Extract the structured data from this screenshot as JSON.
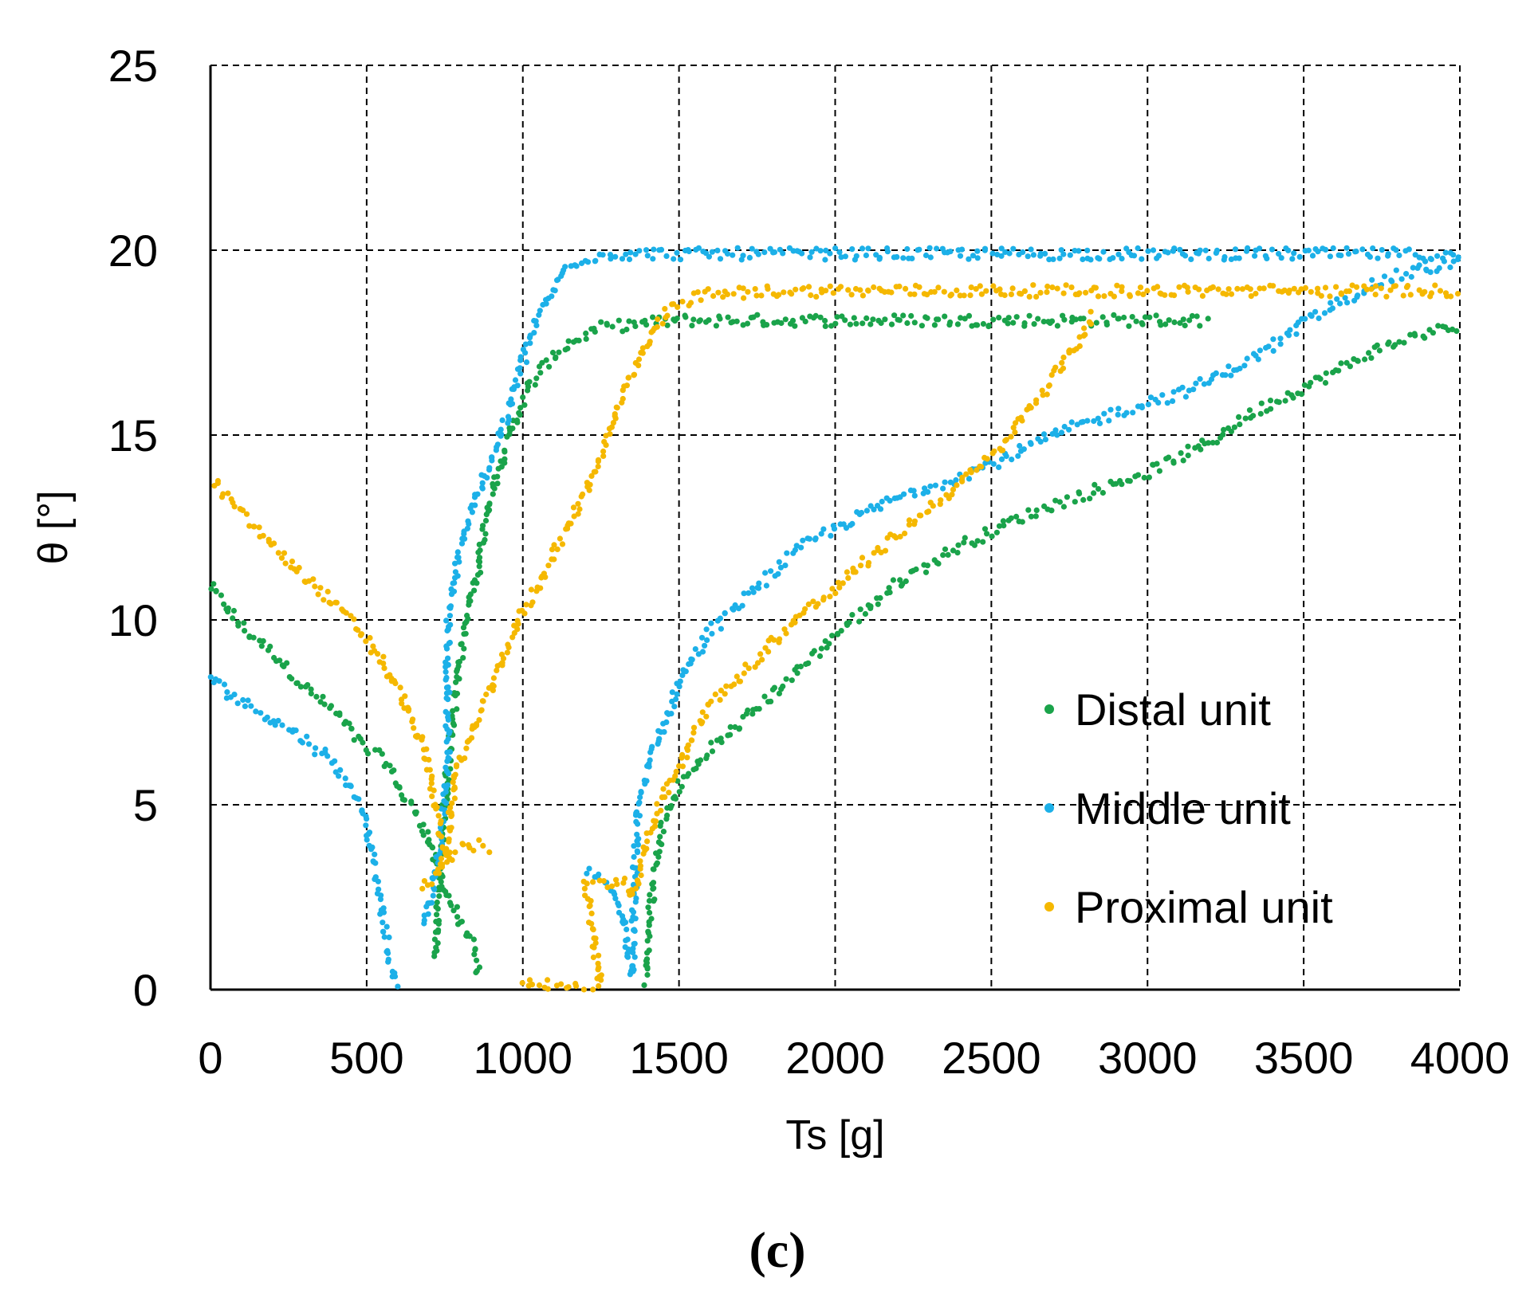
{
  "caption": "(c)",
  "chart_data": {
    "type": "scatter",
    "title": "",
    "xlabel": "Ts [g]",
    "ylabel": "θ [°]",
    "xlim": [
      0,
      4000
    ],
    "ylim": [
      0,
      25
    ],
    "x_ticks": [
      "0",
      "500",
      "1000",
      "1500",
      "2000",
      "2500",
      "3000",
      "3500",
      "4000"
    ],
    "y_ticks": [
      "0",
      "5",
      "10",
      "15",
      "20",
      "25"
    ],
    "grid": true,
    "legend_position": "lower-right",
    "colors": {
      "distal": "#1aa34a",
      "middle": "#1cb0e8",
      "proximal": "#f5b800"
    },
    "series": [
      {
        "name": "Distal unit",
        "key": "distal",
        "segments": [
          [
            [
              0,
              10.9
            ],
            [
              100,
              9.8
            ],
            [
              200,
              9.1
            ],
            [
              300,
              8.2
            ],
            [
              400,
              7.5
            ],
            [
              500,
              6.5
            ],
            [
              560,
              6.2
            ],
            [
              620,
              5.2
            ],
            [
              680,
              4.5
            ],
            [
              720,
              3.5
            ],
            [
              760,
              2.5
            ],
            [
              800,
              1.8
            ],
            [
              840,
              1.2
            ],
            [
              860,
              0.3
            ]
          ],
          [
            [
              720,
              0.8
            ],
            [
              740,
              4.0
            ],
            [
              760,
              6.0
            ],
            [
              780,
              7.5
            ],
            [
              800,
              9.0
            ],
            [
              830,
              10.5
            ],
            [
              860,
              11.5
            ],
            [
              880,
              12.8
            ],
            [
              900,
              13.5
            ],
            [
              940,
              14.5
            ],
            [
              980,
              15.5
            ],
            [
              1020,
              16.3
            ],
            [
              1080,
              17.0
            ],
            [
              1150,
              17.5
            ],
            [
              1250,
              17.9
            ],
            [
              1350,
              18.0
            ],
            [
              1500,
              18.1
            ],
            [
              1700,
              18.1
            ],
            [
              2000,
              18.1
            ],
            [
              2300,
              18.1
            ],
            [
              2600,
              18.1
            ],
            [
              2900,
              18.1
            ],
            [
              3200,
              18.1
            ]
          ],
          [
            [
              1390,
              0.2
            ],
            [
              1400,
              1.5
            ],
            [
              1420,
              3.0
            ],
            [
              1450,
              4.5
            ],
            [
              1500,
              5.5
            ],
            [
              1550,
              6.0
            ],
            [
              1600,
              6.5
            ],
            [
              1700,
              7.2
            ],
            [
              1800,
              8.0
            ],
            [
              1900,
              8.8
            ],
            [
              2000,
              9.6
            ],
            [
              2100,
              10.3
            ],
            [
              2200,
              11.0
            ],
            [
              2300,
              11.5
            ],
            [
              2400,
              12.0
            ],
            [
              2500,
              12.4
            ],
            [
              2600,
              12.8
            ],
            [
              2700,
              13.1
            ],
            [
              2800,
              13.4
            ],
            [
              2900,
              13.7
            ],
            [
              3000,
              14.0
            ],
            [
              3100,
              14.4
            ],
            [
              3200,
              14.8
            ],
            [
              3300,
              15.4
            ],
            [
              3400,
              15.9
            ],
            [
              3500,
              16.3
            ],
            [
              3600,
              16.7
            ],
            [
              3700,
              17.2
            ],
            [
              3800,
              17.5
            ],
            [
              3900,
              17.8
            ],
            [
              4000,
              17.9
            ]
          ]
        ]
      },
      {
        "name": "Middle unit",
        "key": "middle",
        "segments": [
          [
            [
              0,
              8.4
            ],
            [
              100,
              7.8
            ],
            [
              200,
              7.3
            ],
            [
              300,
              6.8
            ],
            [
              400,
              6.1
            ],
            [
              470,
              5.2
            ],
            [
              500,
              4.5
            ],
            [
              520,
              3.5
            ],
            [
              540,
              2.5
            ],
            [
              560,
              1.5
            ],
            [
              580,
              0.5
            ],
            [
              600,
              0.1
            ]
          ],
          [
            [
              680,
              1.8
            ],
            [
              700,
              2.2
            ],
            [
              720,
              3.0
            ],
            [
              740,
              4.5
            ],
            [
              760,
              6.0
            ],
            [
              760,
              10.0
            ],
            [
              780,
              11.0
            ],
            [
              800,
              12.0
            ],
            [
              840,
              13.0
            ],
            [
              880,
              13.9
            ],
            [
              920,
              14.8
            ],
            [
              960,
              15.8
            ],
            [
              1000,
              17.0
            ],
            [
              1050,
              18.2
            ],
            [
              1100,
              19.0
            ],
            [
              1150,
              19.6
            ],
            [
              1200,
              19.8
            ],
            [
              1300,
              19.9
            ],
            [
              1500,
              19.9
            ],
            [
              1800,
              19.9
            ],
            [
              2100,
              19.9
            ],
            [
              2400,
              19.9
            ],
            [
              2700,
              19.9
            ],
            [
              3000,
              19.9
            ],
            [
              3300,
              19.9
            ],
            [
              3600,
              19.9
            ],
            [
              3800,
              19.9
            ],
            [
              4000,
              19.8
            ]
          ],
          [
            [
              1200,
              3.2
            ],
            [
              1250,
              3.0
            ],
            [
              1300,
              2.5
            ],
            [
              1330,
              1.5
            ],
            [
              1350,
              0.3
            ],
            [
              1360,
              3.5
            ],
            [
              1370,
              5.0
            ],
            [
              1400,
              6.0
            ],
            [
              1450,
              7.2
            ],
            [
              1500,
              8.3
            ],
            [
              1550,
              9.0
            ],
            [
              1600,
              9.7
            ],
            [
              1700,
              10.5
            ],
            [
              1800,
              11.3
            ],
            [
              1900,
              12.0
            ],
            [
              2000,
              12.5
            ],
            [
              2100,
              12.9
            ],
            [
              2200,
              13.3
            ],
            [
              2300,
              13.6
            ],
            [
              2400,
              13.9
            ],
            [
              2500,
              14.2
            ],
            [
              2600,
              14.6
            ],
            [
              2700,
              15.0
            ],
            [
              2800,
              15.3
            ],
            [
              2900,
              15.6
            ],
            [
              3000,
              15.9
            ],
            [
              3100,
              16.1
            ],
            [
              3200,
              16.5
            ],
            [
              3300,
              16.9
            ],
            [
              3400,
              17.4
            ],
            [
              3500,
              18.0
            ],
            [
              3600,
              18.5
            ],
            [
              3700,
              19.0
            ],
            [
              3800,
              19.3
            ],
            [
              3900,
              19.5
            ],
            [
              4000,
              19.7
            ]
          ]
        ]
      },
      {
        "name": "Proximal unit",
        "key": "proximal",
        "segments": [
          [
            [
              0,
              13.8
            ],
            [
              100,
              12.9
            ],
            [
              200,
              12.0
            ],
            [
              300,
              11.2
            ],
            [
              400,
              10.4
            ],
            [
              500,
              9.5
            ],
            [
              560,
              8.7
            ],
            [
              620,
              7.8
            ],
            [
              660,
              7.0
            ],
            [
              700,
              6.0
            ],
            [
              720,
              5.0
            ],
            [
              740,
              4.0
            ],
            [
              760,
              3.5
            ],
            [
              800,
              3.8
            ],
            [
              860,
              3.9
            ],
            [
              900,
              3.8
            ]
          ],
          [
            [
              680,
              2.8
            ],
            [
              720,
              3.0
            ],
            [
              760,
              4.0
            ],
            [
              780,
              5.5
            ],
            [
              800,
              6.3
            ],
            [
              840,
              7.0
            ],
            [
              880,
              7.8
            ],
            [
              920,
              8.5
            ],
            [
              960,
              9.5
            ],
            [
              1000,
              10.2
            ],
            [
              1050,
              11.0
            ],
            [
              1100,
              11.8
            ],
            [
              1150,
              12.6
            ],
            [
              1200,
              13.5
            ],
            [
              1250,
              14.5
            ],
            [
              1300,
              15.6
            ],
            [
              1350,
              16.6
            ],
            [
              1400,
              17.5
            ],
            [
              1450,
              18.2
            ],
            [
              1500,
              18.6
            ],
            [
              1600,
              18.8
            ],
            [
              1800,
              18.9
            ],
            [
              2000,
              18.9
            ],
            [
              2200,
              18.9
            ],
            [
              2400,
              18.9
            ],
            [
              2600,
              18.9
            ],
            [
              2800,
              18.9
            ],
            [
              3000,
              18.9
            ],
            [
              3200,
              18.9
            ],
            [
              3400,
              18.9
            ],
            [
              3600,
              18.9
            ],
            [
              3800,
              18.9
            ],
            [
              4000,
              18.9
            ]
          ],
          [
            [
              1000,
              0.3
            ],
            [
              1050,
              0.1
            ],
            [
              1100,
              0.1
            ],
            [
              1200,
              0.1
            ],
            [
              1250,
              0.1
            ],
            [
              1200,
              2.8
            ],
            [
              1280,
              2.9
            ],
            [
              1320,
              3.0
            ],
            [
              1350,
              2.5
            ],
            [
              1380,
              3.5
            ],
            [
              1420,
              4.5
            ],
            [
              1450,
              5.3
            ],
            [
              1500,
              6.0
            ],
            [
              1550,
              7.0
            ],
            [
              1600,
              7.7
            ],
            [
              1700,
              8.5
            ],
            [
              1800,
              9.4
            ],
            [
              1900,
              10.2
            ],
            [
              2000,
              10.8
            ],
            [
              2100,
              11.6
            ],
            [
              2200,
              12.3
            ],
            [
              2300,
              13.0
            ],
            [
              2400,
              13.7
            ],
            [
              2500,
              14.4
            ],
            [
              2550,
              14.8
            ],
            [
              2600,
              15.5
            ],
            [
              2650,
              16.0
            ],
            [
              2700,
              16.6
            ],
            [
              2750,
              17.2
            ],
            [
              2800,
              17.8
            ],
            [
              2820,
              18.3
            ]
          ]
        ]
      }
    ]
  }
}
